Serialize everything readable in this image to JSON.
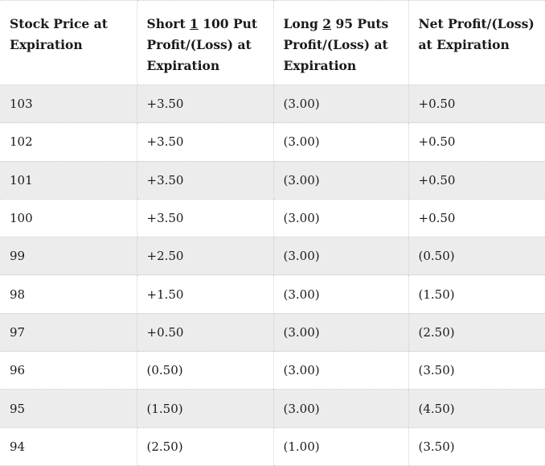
{
  "table": {
    "headers": [
      {
        "prefix": "Stock Price at Expiration",
        "underlined": "",
        "suffix": ""
      },
      {
        "prefix": "Short ",
        "underlined": "1",
        "suffix": " 100 Put Profit/(Loss) at Expiration"
      },
      {
        "prefix": "Long ",
        "underlined": "2",
        "suffix": " 95 Puts Profit/(Loss) at Expiration"
      },
      {
        "prefix": "Net Profit/(Loss) at Expiration",
        "underlined": "",
        "suffix": ""
      }
    ],
    "rows": [
      [
        "103",
        "+3.50",
        "(3.00)",
        "+0.50"
      ],
      [
        "102",
        "+3.50",
        "(3.00)",
        "+0.50"
      ],
      [
        "101",
        "+3.50",
        "(3.00)",
        "+0.50"
      ],
      [
        "100",
        "+3.50",
        "(3.00)",
        "+0.50"
      ],
      [
        "99",
        "+2.50",
        "(3.00)",
        "(0.50)"
      ],
      [
        "98",
        "+1.50",
        "(3.00)",
        "(1.50)"
      ],
      [
        "97",
        "+0.50",
        "(3.00)",
        "(2.50)"
      ],
      [
        "96",
        "(0.50)",
        "(3.00)",
        "(3.50)"
      ],
      [
        "95",
        "(1.50)",
        "(3.00)",
        "(4.50)"
      ],
      [
        "94",
        "(2.50)",
        "(1.00)",
        "(3.50)"
      ]
    ]
  }
}
